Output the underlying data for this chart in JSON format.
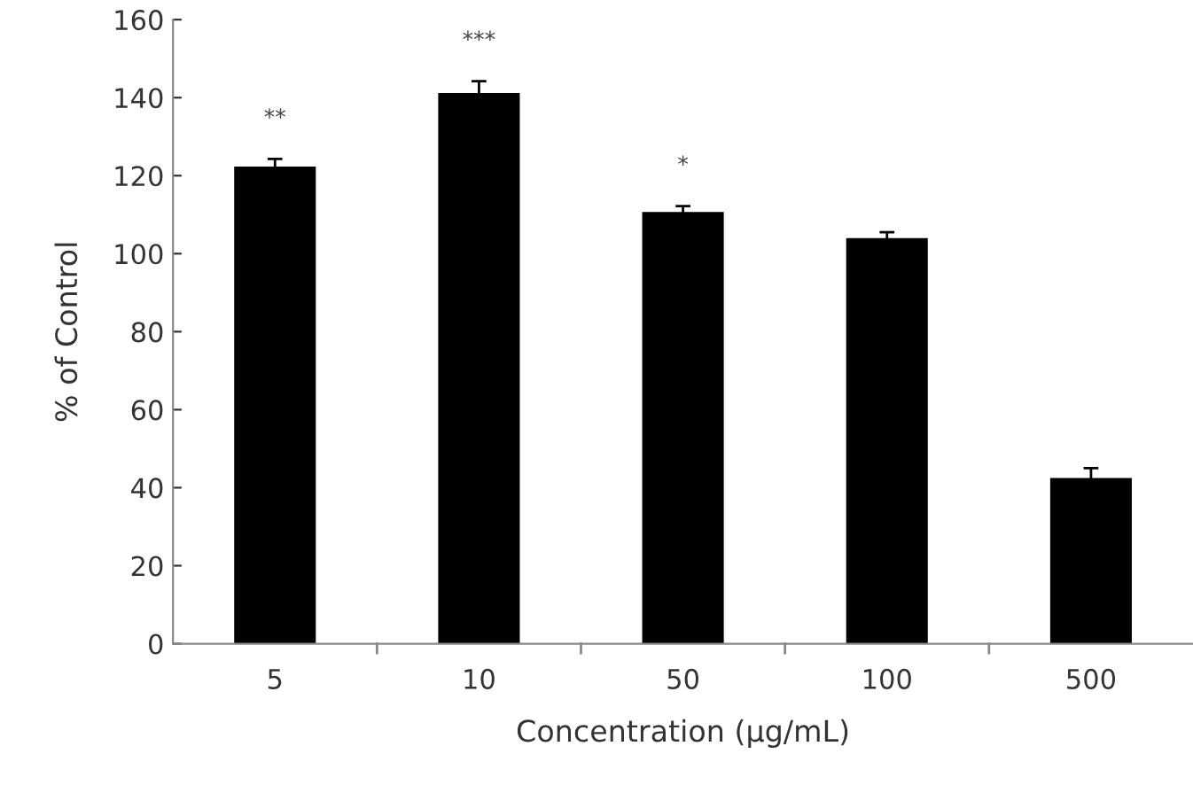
{
  "chart_data": {
    "type": "bar",
    "xlabel": "Concentration (μg/mL)",
    "ylabel": "% of Control",
    "categories": [
      "5",
      "10",
      "50",
      "100",
      "500"
    ],
    "values": [
      122.3,
      141.2,
      110.7,
      104,
      42.5
    ],
    "errors": [
      2,
      3,
      1.5,
      1.5,
      2.5
    ],
    "color": "#000000",
    "ylim": [
      0,
      160
    ],
    "yticks": [
      0,
      20,
      40,
      60,
      80,
      100,
      120,
      140,
      160
    ],
    "annotations": [
      "**",
      "***",
      "*"
    ]
  }
}
